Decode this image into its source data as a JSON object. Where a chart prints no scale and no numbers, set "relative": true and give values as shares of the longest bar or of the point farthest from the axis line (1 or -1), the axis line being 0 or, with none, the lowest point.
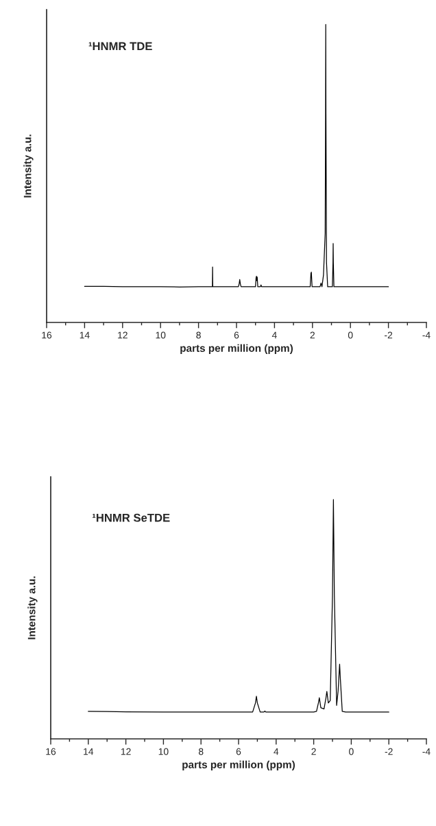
{
  "chart_data": [
    {
      "type": "line",
      "relative": true,
      "tick_labels": "x",
      "xlabel": "parts per million (ppm)",
      "ylabel": "Intensity a.u.",
      "annotations": [
        "¹HNMR TDE"
      ],
      "xlim": [
        16,
        -4
      ],
      "xticks": [
        16,
        14,
        12,
        10,
        8,
        6,
        4,
        2,
        0,
        -2,
        -4
      ],
      "series": [
        {
          "color": "#000000",
          "x": [
            14.0,
            13.0,
            12.0,
            11.0,
            10.0,
            9.0,
            8.0,
            7.32,
            7.27,
            7.26,
            7.25,
            7.2,
            5.9,
            5.86,
            5.83,
            5.8,
            5.76,
            5.0,
            4.97,
            4.95,
            4.93,
            4.91,
            4.88,
            4.74,
            4.71,
            4.68,
            2.12,
            2.08,
            2.06,
            2.02,
            1.6,
            1.55,
            1.5,
            1.42,
            1.33,
            1.31,
            1.3,
            1.29,
            1.26,
            1.2,
            0.95,
            0.92,
            0.91,
            0.9,
            0.87,
            0.8,
            0.0,
            -1.0,
            -2.0
          ],
          "values": [
            0.121,
            0.121,
            0.12,
            0.12,
            0.12,
            0.119,
            0.12,
            0.12,
            0.12,
            0.186,
            0.12,
            0.12,
            0.12,
            0.13,
            0.144,
            0.13,
            0.12,
            0.12,
            0.15,
            0.155,
            0.14,
            0.152,
            0.12,
            0.12,
            0.126,
            0.12,
            0.12,
            0.165,
            0.169,
            0.12,
            0.12,
            0.132,
            0.12,
            0.159,
            0.3,
            0.7,
            1.0,
            0.7,
            0.2,
            0.12,
            0.12,
            0.2,
            0.265,
            0.2,
            0.12,
            0.12,
            0.12,
            0.12,
            0.12
          ]
        }
      ]
    },
    {
      "type": "line",
      "relative": true,
      "tick_labels": "x",
      "xlabel": "parts per million (ppm)",
      "ylabel": "Intensity a.u.",
      "annotations": [
        "¹HNMR SeTDE"
      ],
      "xlim": [
        16,
        -4
      ],
      "xticks": [
        16,
        14,
        12,
        10,
        8,
        6,
        4,
        2,
        0,
        -2,
        -4
      ],
      "series": [
        {
          "color": "#000000",
          "x": [
            14.0,
            13.0,
            12.0,
            10.0,
            8.0,
            6.0,
            5.25,
            5.1,
            5.05,
            5.0,
            4.85,
            4.65,
            4.6,
            4.55,
            2.0,
            1.85,
            1.75,
            1.7,
            1.62,
            1.45,
            1.35,
            1.3,
            1.22,
            1.12,
            1.0,
            0.95,
            0.9,
            0.78,
            0.7,
            0.62,
            0.58,
            0.48,
            0.3,
            -1.0,
            -2.0
          ],
          "values": [
            0.115,
            0.114,
            0.113,
            0.112,
            0.112,
            0.112,
            0.112,
            0.15,
            0.178,
            0.15,
            0.112,
            0.112,
            0.116,
            0.112,
            0.112,
            0.115,
            0.15,
            0.172,
            0.13,
            0.125,
            0.17,
            0.198,
            0.15,
            0.16,
            0.6,
            1.0,
            0.6,
            0.14,
            0.2,
            0.312,
            0.25,
            0.115,
            0.112,
            0.112,
            0.112
          ]
        }
      ]
    }
  ]
}
